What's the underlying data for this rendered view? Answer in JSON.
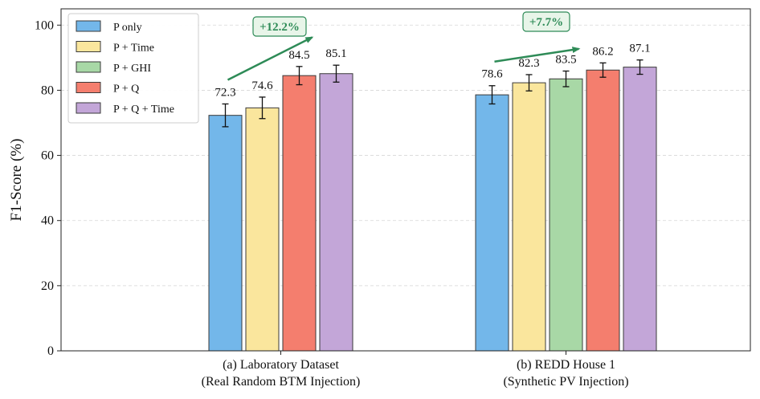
{
  "chart_data": {
    "type": "bar",
    "title": "",
    "xlabel": "",
    "ylabel": "F1-Score (%)",
    "ylim": [
      0,
      105
    ],
    "yticks": [
      0,
      20,
      40,
      60,
      80,
      100
    ],
    "grid": true,
    "legend_position": "top-left",
    "series": [
      {
        "name": "P only",
        "color": "#73b7ea"
      },
      {
        "name": "P + Time",
        "color": "#fae69d"
      },
      {
        "name": "P + GHI",
        "color": "#a8d8a6"
      },
      {
        "name": "P + Q",
        "color": "#f47e6e"
      },
      {
        "name": "P + Q + Time",
        "color": "#c3a6d8"
      }
    ],
    "groups": [
      {
        "label_line1": "(a) Laboratory Dataset",
        "label_line2": "(Real Random BTM Injection)",
        "bars": [
          {
            "series": "P only",
            "value": 72.3,
            "error": 3.5
          },
          {
            "series": "P + Time",
            "value": 74.6,
            "error": 3.3
          },
          {
            "series": "P + Q",
            "value": 84.5,
            "error": 2.8
          },
          {
            "series": "P + Q + Time",
            "value": 85.1,
            "error": 2.6
          }
        ],
        "annotation": "+12.2%"
      },
      {
        "label_line1": "(b) REDD House 1",
        "label_line2": "(Synthetic PV Injection)",
        "bars": [
          {
            "series": "P only",
            "value": 78.6,
            "error": 2.8
          },
          {
            "series": "P + Time",
            "value": 82.3,
            "error": 2.5
          },
          {
            "series": "P + GHI",
            "value": 83.5,
            "error": 2.4
          },
          {
            "series": "P + Q",
            "value": 86.2,
            "error": 2.2
          },
          {
            "series": "P + Q + Time",
            "value": 87.1,
            "error": 2.2
          }
        ],
        "annotation": "+7.7%"
      }
    ]
  }
}
